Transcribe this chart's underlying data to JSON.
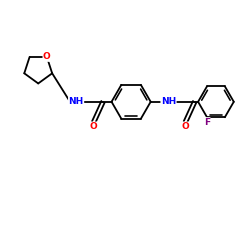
{
  "background_color": "#ffffff",
  "bond_color": "#000000",
  "bond_width": 1.3,
  "atom_colors": {
    "O": "#ff0000",
    "N": "#0000ff",
    "F": "#800080",
    "C": "#000000"
  },
  "font_size_atom": 6.5,
  "xlim": [
    0,
    10
  ],
  "ylim": [
    0,
    10
  ],
  "figsize": [
    2.5,
    2.5
  ],
  "dpi": 100
}
